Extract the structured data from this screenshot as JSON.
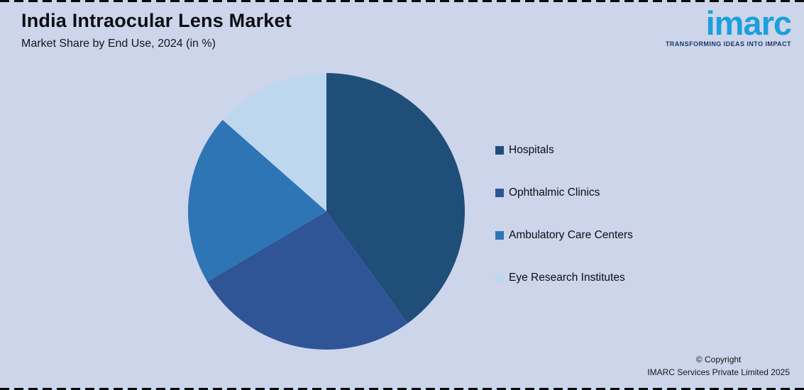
{
  "header": {
    "title": "India Intraocular Lens Market",
    "subtitle": "Market Share by End Use, 2024 (in %)"
  },
  "logo": {
    "brand": "imarc",
    "tagline": "TRANSFORMING IDEAS INTO IMPACT",
    "brand_color": "#1ba0dc",
    "tagline_color": "#1c3766"
  },
  "chart_data": {
    "type": "pie",
    "title": "India Intraocular Lens Market",
    "subtitle": "Market Share by End Use, 2024 (in %)",
    "units": "%",
    "labels": [
      "Hospitals",
      "Ophthalmic Clinics",
      "Ambulatory Care Centers",
      "Eye Research Institutes"
    ],
    "values": [
      40,
      26.5,
      20,
      13.5
    ],
    "colors": [
      "#1F4E79",
      "#2F5597",
      "#2E75B6",
      "#BDD7EE"
    ],
    "start_angle": "12 o'clock, clockwise",
    "legend_position": "right",
    "background_color": "#cdd5ea"
  },
  "footer": {
    "copyright_line1": "© Copyright",
    "copyright_line2": "IMARC Services Private Limited 2025"
  }
}
